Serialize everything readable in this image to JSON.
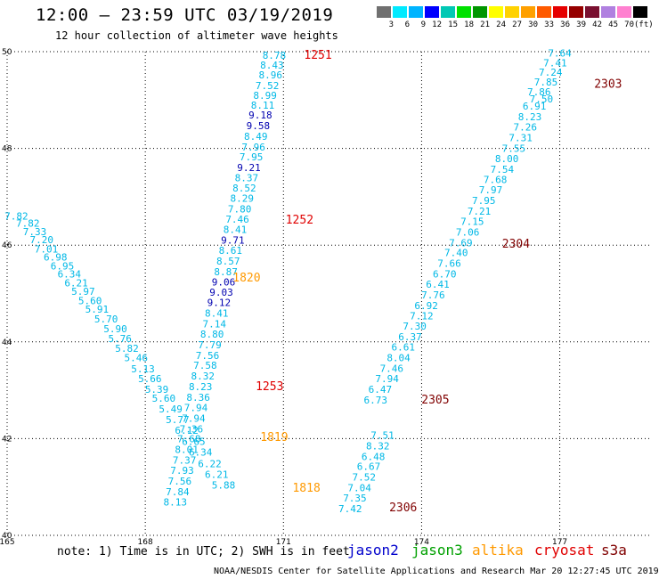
{
  "header": {
    "title": "12:00 – 23:59 UTC 03/19/2019",
    "subtitle": "12 hour collection of altimeter wave heights"
  },
  "colorbar": {
    "colors": [
      "#707070",
      "#00eaff",
      "#00b4ff",
      "#0000ff",
      "#00c8b4",
      "#00e100",
      "#009600",
      "#ffff00",
      "#ffd200",
      "#ffa000",
      "#ff5a00",
      "#e60000",
      "#960000",
      "#7a1030",
      "#b080e0",
      "#ff80d0",
      "#000000"
    ],
    "labels": [
      "3",
      "6",
      "9",
      "12",
      "15",
      "18",
      "21",
      "24",
      "27",
      "30",
      "33",
      "36",
      "39",
      "42",
      "45",
      "70",
      "(ft)"
    ]
  },
  "map": {
    "x_ticks": [
      "165",
      "168",
      "171",
      "174",
      "177"
    ],
    "y_ticks": [
      "40",
      "42",
      "44",
      "46",
      "48",
      "50"
    ],
    "lon_range": [
      165,
      179
    ],
    "lat_range": [
      40,
      50
    ]
  },
  "sat_colors": {
    "jason2": "#0000cc",
    "jason3": "#00a000",
    "altika": "#ff9900",
    "cryosat": "#e00000",
    "s3a": "#800000",
    "light": "#00b8e6",
    "dark": "#0000b0"
  },
  "passes": [
    {
      "id": "1818-1820",
      "values": [
        {
          "lon": 165.2,
          "lat": 46.53,
          "v": "7.82"
        },
        {
          "lon": 165.45,
          "lat": 46.38,
          "v": "7.82"
        },
        {
          "lon": 165.6,
          "lat": 46.21,
          "v": "7.33"
        },
        {
          "lon": 165.75,
          "lat": 46.04,
          "v": "7.20"
        },
        {
          "lon": 165.85,
          "lat": 45.85,
          "v": "7.01"
        },
        {
          "lon": 166.05,
          "lat": 45.68,
          "v": "6.98"
        },
        {
          "lon": 166.2,
          "lat": 45.5,
          "v": "6.95"
        },
        {
          "lon": 166.35,
          "lat": 45.33,
          "v": "6.34"
        },
        {
          "lon": 166.5,
          "lat": 45.15,
          "v": "6.21"
        },
        {
          "lon": 166.65,
          "lat": 44.97,
          "v": "5.97"
        },
        {
          "lon": 166.8,
          "lat": 44.78,
          "v": "5.60"
        },
        {
          "lon": 166.95,
          "lat": 44.6,
          "v": "5.91"
        },
        {
          "lon": 167.15,
          "lat": 44.4,
          "v": "5.70"
        },
        {
          "lon": 167.35,
          "lat": 44.2,
          "v": "5.90"
        },
        {
          "lon": 167.45,
          "lat": 44.0,
          "v": "5.76"
        },
        {
          "lon": 167.6,
          "lat": 43.79,
          "v": "5.82"
        },
        {
          "lon": 167.8,
          "lat": 43.6,
          "v": "5.46"
        },
        {
          "lon": 167.95,
          "lat": 43.37,
          "v": "5.13"
        },
        {
          "lon": 168.1,
          "lat": 43.17,
          "v": "5.66"
        },
        {
          "lon": 168.25,
          "lat": 42.95,
          "v": "5.39"
        },
        {
          "lon": 168.4,
          "lat": 42.76,
          "v": "5.60"
        },
        {
          "lon": 168.55,
          "lat": 42.54,
          "v": "5.49"
        },
        {
          "lon": 168.7,
          "lat": 42.32,
          "v": "5.77"
        },
        {
          "lon": 168.9,
          "lat": 42.1,
          "v": "6.12"
        },
        {
          "lon": 169.05,
          "lat": 41.87,
          "v": "6.65"
        },
        {
          "lon": 169.2,
          "lat": 41.65,
          "v": "6.34"
        },
        {
          "lon": 169.4,
          "lat": 41.41,
          "v": "6.22"
        },
        {
          "lon": 169.55,
          "lat": 41.19,
          "v": "6.21"
        },
        {
          "lon": 169.7,
          "lat": 40.97,
          "v": "5.88"
        }
      ],
      "labels": [
        {
          "lon": 170.2,
          "lat": 45.25,
          "t": "1820",
          "sat": "altika"
        },
        {
          "lon": 170.8,
          "lat": 41.95,
          "t": "1819",
          "sat": "altika"
        },
        {
          "lon": 171.5,
          "lat": 40.9,
          "t": "1818",
          "sat": "altika"
        }
      ]
    },
    {
      "id": "1251-1253",
      "values": [
        {
          "lon": 170.8,
          "lat": 49.85,
          "v": "8.78"
        },
        {
          "lon": 170.75,
          "lat": 49.65,
          "v": "8.43"
        },
        {
          "lon": 170.72,
          "lat": 49.45,
          "v": "8.96"
        },
        {
          "lon": 170.65,
          "lat": 49.23,
          "v": "7.52"
        },
        {
          "lon": 170.6,
          "lat": 49.02,
          "v": "8.99"
        },
        {
          "lon": 170.55,
          "lat": 48.82,
          "v": "8.11"
        },
        {
          "lon": 170.5,
          "lat": 48.62,
          "v": "9.18",
          "c": "dark"
        },
        {
          "lon": 170.45,
          "lat": 48.4,
          "v": "9.58",
          "c": "dark"
        },
        {
          "lon": 170.4,
          "lat": 48.18,
          "v": "8.49"
        },
        {
          "lon": 170.35,
          "lat": 47.96,
          "v": "7.96"
        },
        {
          "lon": 170.3,
          "lat": 47.75,
          "v": "7.95"
        },
        {
          "lon": 170.25,
          "lat": 47.53,
          "v": "9.21",
          "c": "dark"
        },
        {
          "lon": 170.2,
          "lat": 47.32,
          "v": "8.37"
        },
        {
          "lon": 170.15,
          "lat": 47.11,
          "v": "8.52"
        },
        {
          "lon": 170.1,
          "lat": 46.9,
          "v": "8.29"
        },
        {
          "lon": 170.05,
          "lat": 46.68,
          "v": "7.80"
        },
        {
          "lon": 170.0,
          "lat": 46.46,
          "v": "7.46"
        },
        {
          "lon": 169.95,
          "lat": 46.25,
          "v": "8.41"
        },
        {
          "lon": 169.9,
          "lat": 46.03,
          "v": "9.71",
          "c": "dark"
        },
        {
          "lon": 169.85,
          "lat": 45.82,
          "v": "8.61"
        },
        {
          "lon": 169.8,
          "lat": 45.6,
          "v": "8.57"
        },
        {
          "lon": 169.75,
          "lat": 45.38,
          "v": "8.87"
        },
        {
          "lon": 169.7,
          "lat": 45.17,
          "v": "9.06",
          "c": "dark"
        },
        {
          "lon": 169.65,
          "lat": 44.95,
          "v": "9.03",
          "c": "dark"
        },
        {
          "lon": 169.6,
          "lat": 44.74,
          "v": "9.12",
          "c": "dark"
        },
        {
          "lon": 169.55,
          "lat": 44.52,
          "v": "8.41"
        },
        {
          "lon": 169.5,
          "lat": 44.3,
          "v": "7.14"
        },
        {
          "lon": 169.45,
          "lat": 44.09,
          "v": "8.80"
        },
        {
          "lon": 169.4,
          "lat": 43.87,
          "v": "7.79"
        },
        {
          "lon": 169.35,
          "lat": 43.65,
          "v": "7.56"
        },
        {
          "lon": 169.3,
          "lat": 43.44,
          "v": "7.58"
        },
        {
          "lon": 169.25,
          "lat": 43.22,
          "v": "8.32"
        },
        {
          "lon": 169.2,
          "lat": 43.0,
          "v": "8.23"
        },
        {
          "lon": 169.15,
          "lat": 42.78,
          "v": "8.36"
        },
        {
          "lon": 169.1,
          "lat": 42.57,
          "v": "7.94"
        },
        {
          "lon": 169.05,
          "lat": 42.35,
          "v": "7.94"
        },
        {
          "lon": 169.0,
          "lat": 42.13,
          "v": "7.36"
        },
        {
          "lon": 168.95,
          "lat": 41.92,
          "v": "7.68"
        },
        {
          "lon": 168.9,
          "lat": 41.7,
          "v": "8.01"
        },
        {
          "lon": 168.85,
          "lat": 41.48,
          "v": "7.37"
        },
        {
          "lon": 168.8,
          "lat": 41.27,
          "v": "7.93"
        },
        {
          "lon": 168.75,
          "lat": 41.05,
          "v": "7.56"
        },
        {
          "lon": 168.7,
          "lat": 40.83,
          "v": "7.84"
        },
        {
          "lon": 168.65,
          "lat": 40.62,
          "v": "8.13"
        }
      ],
      "labels": [
        {
          "lon": 171.75,
          "lat": 49.85,
          "t": "1251",
          "sat": "cryosat"
        },
        {
          "lon": 171.35,
          "lat": 46.45,
          "t": "1252",
          "sat": "cryosat"
        },
        {
          "lon": 170.7,
          "lat": 43.0,
          "t": "1253",
          "sat": "cryosat"
        }
      ]
    },
    {
      "id": "2303-2306",
      "values": [
        {
          "lon": 177.0,
          "lat": 49.9,
          "v": "7.64"
        },
        {
          "lon": 176.9,
          "lat": 49.7,
          "v": "7.41"
        },
        {
          "lon": 176.8,
          "lat": 49.5,
          "v": "7.24"
        },
        {
          "lon": 176.7,
          "lat": 49.3,
          "v": "7.85"
        },
        {
          "lon": 176.55,
          "lat": 49.1,
          "v": "7.86"
        },
        {
          "lon": 176.6,
          "lat": 48.95,
          "v": "7.50"
        },
        {
          "lon": 176.45,
          "lat": 48.8,
          "v": "6.91"
        },
        {
          "lon": 176.35,
          "lat": 48.58,
          "v": "8.23"
        },
        {
          "lon": 176.25,
          "lat": 48.37,
          "v": "7.26"
        },
        {
          "lon": 176.15,
          "lat": 48.15,
          "v": "7.31"
        },
        {
          "lon": 176.0,
          "lat": 47.93,
          "v": "7.55"
        },
        {
          "lon": 175.85,
          "lat": 47.72,
          "v": "8.00"
        },
        {
          "lon": 175.75,
          "lat": 47.5,
          "v": "7.54"
        },
        {
          "lon": 175.6,
          "lat": 47.28,
          "v": "7.68"
        },
        {
          "lon": 175.5,
          "lat": 47.07,
          "v": "7.97"
        },
        {
          "lon": 175.35,
          "lat": 46.85,
          "v": "7.95"
        },
        {
          "lon": 175.25,
          "lat": 46.63,
          "v": "7.21"
        },
        {
          "lon": 175.1,
          "lat": 46.42,
          "v": "7.15"
        },
        {
          "lon": 175.0,
          "lat": 46.2,
          "v": "7.06"
        },
        {
          "lon": 174.85,
          "lat": 45.98,
          "v": "7.69"
        },
        {
          "lon": 174.75,
          "lat": 45.77,
          "v": "7.40"
        },
        {
          "lon": 174.6,
          "lat": 45.55,
          "v": "7.66"
        },
        {
          "lon": 174.5,
          "lat": 45.33,
          "v": "6.70"
        },
        {
          "lon": 174.35,
          "lat": 45.12,
          "v": "6.41"
        },
        {
          "lon": 174.25,
          "lat": 44.9,
          "v": "7.76"
        },
        {
          "lon": 174.1,
          "lat": 44.68,
          "v": "6.92"
        },
        {
          "lon": 174.0,
          "lat": 44.47,
          "v": "7.12"
        },
        {
          "lon": 173.85,
          "lat": 44.25,
          "v": "7.30"
        },
        {
          "lon": 173.75,
          "lat": 44.03,
          "v": "6.37"
        },
        {
          "lon": 173.6,
          "lat": 43.82,
          "v": "6.61"
        },
        {
          "lon": 173.5,
          "lat": 43.6,
          "v": "8.04"
        },
        {
          "lon": 173.35,
          "lat": 43.38,
          "v": "7.46"
        },
        {
          "lon": 173.25,
          "lat": 43.17,
          "v": "7.94"
        },
        {
          "lon": 173.1,
          "lat": 42.95,
          "v": "6.47"
        },
        {
          "lon": 173.0,
          "lat": 42.73,
          "v": "6.73"
        },
        {
          "lon": 173.15,
          "lat": 42.0,
          "v": "7.51"
        },
        {
          "lon": 173.05,
          "lat": 41.78,
          "v": "8.32"
        },
        {
          "lon": 172.95,
          "lat": 41.56,
          "v": "6.48"
        },
        {
          "lon": 172.85,
          "lat": 41.35,
          "v": "6.67"
        },
        {
          "lon": 172.75,
          "lat": 41.13,
          "v": "7.52"
        },
        {
          "lon": 172.65,
          "lat": 40.91,
          "v": "7.04"
        },
        {
          "lon": 172.55,
          "lat": 40.7,
          "v": "7.35"
        },
        {
          "lon": 172.45,
          "lat": 40.48,
          "v": "7.42"
        }
      ],
      "labels": [
        {
          "lon": 178.05,
          "lat": 49.25,
          "t": "2303",
          "sat": "s3a"
        },
        {
          "lon": 176.05,
          "lat": 45.95,
          "t": "2304",
          "sat": "s3a"
        },
        {
          "lon": 174.3,
          "lat": 42.73,
          "t": "2305",
          "sat": "s3a"
        },
        {
          "lon": 173.6,
          "lat": 40.5,
          "t": "2306",
          "sat": "s3a"
        }
      ]
    }
  ],
  "note": "note: 1) Time is in UTC; 2) SWH is in feet",
  "legend": {
    "jason2": "jason2",
    "jason3": "jason3",
    "altika": "altika",
    "cryosat": "cryosat",
    "s3a": "s3a"
  },
  "credit": "NOAA/NESDIS Center for Satellite Applications and Research    Mar 20 12:27:45 UTC 2019"
}
